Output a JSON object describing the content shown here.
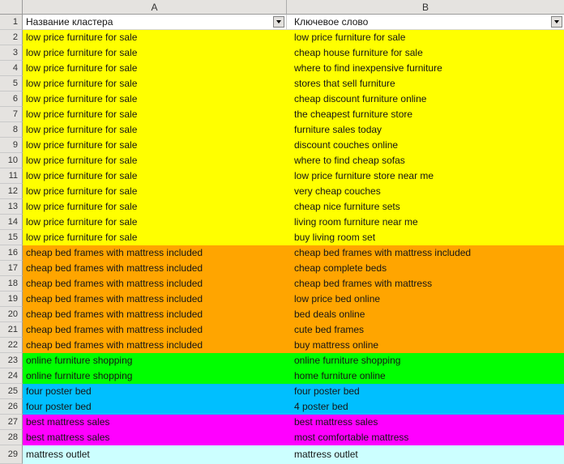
{
  "sheet": {
    "columns": [
      {
        "letter": "A",
        "header": "Название кластера",
        "filter_icon": "dropdown-arrow"
      },
      {
        "letter": "B",
        "header": "Ключевое слово",
        "filter_icon": "dropdown-arrow"
      }
    ],
    "header_row_number": "1",
    "cluster_colors": {
      "low_price_furniture": "#FFFF00",
      "cheap_bed_frames": "#FFA500",
      "online_furniture_shopping": "#00FF00",
      "four_poster_bed": "#00BFFF",
      "best_mattress_sales": "#FF00FF",
      "mattress_outlet": "#CCFFFF"
    }
  },
  "rows": [
    {
      "num": "2",
      "cluster": "low price furniture for sale",
      "keyword": "low price furniture for sale",
      "fill": "#FFFF00"
    },
    {
      "num": "3",
      "cluster": "low price furniture for sale",
      "keyword": "cheap house furniture for sale",
      "fill": "#FFFF00"
    },
    {
      "num": "4",
      "cluster": "low price furniture for sale",
      "keyword": "where to find inexpensive furniture",
      "fill": "#FFFF00"
    },
    {
      "num": "5",
      "cluster": "low price furniture for sale",
      "keyword": "stores that sell furniture",
      "fill": "#FFFF00"
    },
    {
      "num": "6",
      "cluster": "low price furniture for sale",
      "keyword": "cheap discount furniture online",
      "fill": "#FFFF00"
    },
    {
      "num": "7",
      "cluster": "low price furniture for sale",
      "keyword": "the cheapest furniture store",
      "fill": "#FFFF00"
    },
    {
      "num": "8",
      "cluster": "low price furniture for sale",
      "keyword": "furniture sales today",
      "fill": "#FFFF00"
    },
    {
      "num": "9",
      "cluster": "low price furniture for sale",
      "keyword": "discount couches online",
      "fill": "#FFFF00"
    },
    {
      "num": "10",
      "cluster": "low price furniture for sale",
      "keyword": "where to find cheap sofas",
      "fill": "#FFFF00"
    },
    {
      "num": "11",
      "cluster": "low price furniture for sale",
      "keyword": "low price furniture store near me",
      "fill": "#FFFF00"
    },
    {
      "num": "12",
      "cluster": "low price furniture for sale",
      "keyword": "very cheap couches",
      "fill": "#FFFF00"
    },
    {
      "num": "13",
      "cluster": "low price furniture for sale",
      "keyword": "cheap nice furniture sets",
      "fill": "#FFFF00"
    },
    {
      "num": "14",
      "cluster": "low price furniture for sale",
      "keyword": "living room furniture near me",
      "fill": "#FFFF00"
    },
    {
      "num": "15",
      "cluster": "low price furniture for sale",
      "keyword": "buy living room set",
      "fill": "#FFFF00"
    },
    {
      "num": "16",
      "cluster": "cheap bed frames with mattress included",
      "keyword": "cheap bed frames with mattress included",
      "fill": "#FFA500"
    },
    {
      "num": "17",
      "cluster": "cheap bed frames with mattress included",
      "keyword": "cheap complete beds",
      "fill": "#FFA500"
    },
    {
      "num": "18",
      "cluster": "cheap bed frames with mattress included",
      "keyword": "cheap bed frames with mattress",
      "fill": "#FFA500"
    },
    {
      "num": "19",
      "cluster": "cheap bed frames with mattress included",
      "keyword": "low price bed online",
      "fill": "#FFA500"
    },
    {
      "num": "20",
      "cluster": "cheap bed frames with mattress included",
      "keyword": "bed deals online",
      "fill": "#FFA500"
    },
    {
      "num": "21",
      "cluster": "cheap bed frames with mattress included",
      "keyword": "cute bed frames",
      "fill": "#FFA500"
    },
    {
      "num": "22",
      "cluster": "cheap bed frames with mattress included",
      "keyword": "buy mattress online",
      "fill": "#FFA500"
    },
    {
      "num": "23",
      "cluster": "online furniture shopping",
      "keyword": "online furniture shopping",
      "fill": "#00FF00"
    },
    {
      "num": "24",
      "cluster": "online furniture shopping",
      "keyword": "home furniture online",
      "fill": "#00FF00"
    },
    {
      "num": "25",
      "cluster": "four poster bed",
      "keyword": "four poster bed",
      "fill": "#00BFFF"
    },
    {
      "num": "26",
      "cluster": "four poster bed",
      "keyword": "4 poster bed",
      "fill": "#00BFFF"
    },
    {
      "num": "27",
      "cluster": "best mattress sales",
      "keyword": "best mattress sales",
      "fill": "#FF00FF"
    },
    {
      "num": "28",
      "cluster": "best mattress sales",
      "keyword": "most comfortable mattress",
      "fill": "#FF00FF"
    },
    {
      "num": "29",
      "cluster": "mattress outlet",
      "keyword": "mattress outlet",
      "fill": "#CCFFFF"
    }
  ]
}
